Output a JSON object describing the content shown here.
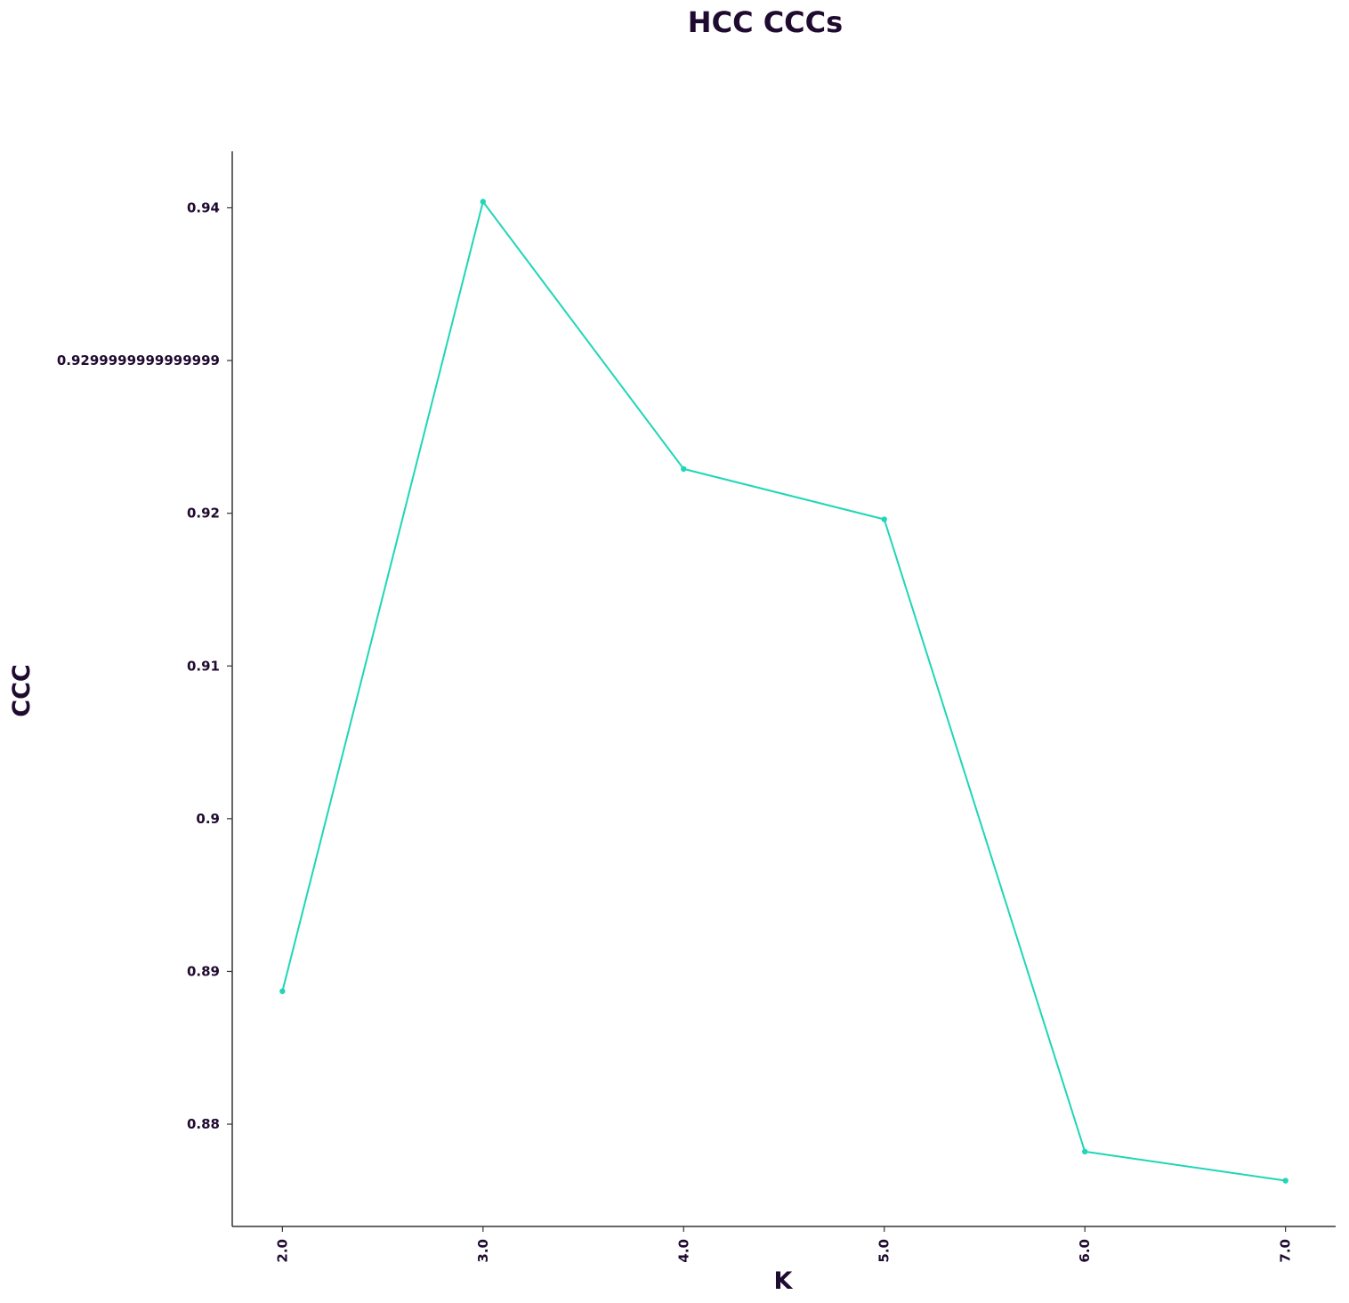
{
  "chart_data": {
    "type": "line",
    "title": "HCC CCCs",
    "xlabel": "K",
    "ylabel": "CCC",
    "x": [
      2.0,
      3.0,
      4.0,
      5.0,
      6.0,
      7.0
    ],
    "x_tick_labels": [
      "2.0",
      "3.0",
      "4.0",
      "5.0",
      "6.0",
      "7.0"
    ],
    "y_ticks": [
      0.88,
      0.89,
      0.9,
      0.91,
      0.92,
      0.93,
      0.94
    ],
    "y_tick_labels": [
      "0.88",
      "0.89",
      "0.9",
      "0.91",
      "0.92",
      "0.9299999999999999",
      "0.94"
    ],
    "series": [
      {
        "values": [
          0.8887,
          0.9404,
          0.9229,
          0.9196,
          0.8782,
          0.8763
        ],
        "color": "#1fd6b6"
      }
    ],
    "xlim": [
      1.75,
      7.25
    ],
    "ylim": [
      0.8733,
      0.9437
    ],
    "grid": false,
    "colors": {
      "text": "#1f0a30",
      "axis": "#333333",
      "line": "#1fd6b6"
    }
  }
}
